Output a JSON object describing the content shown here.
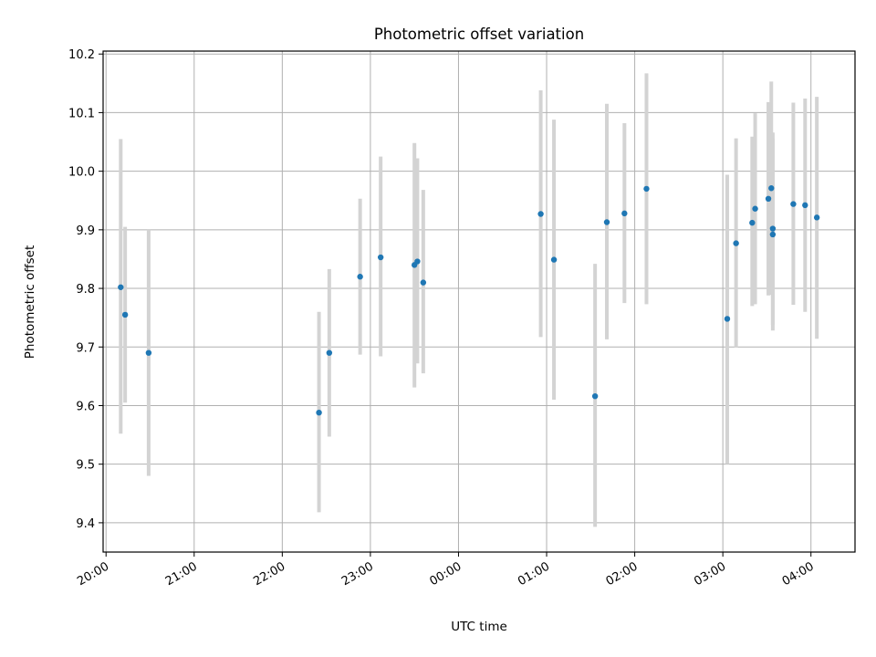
{
  "chart_data": {
    "type": "scatter",
    "title": "Photometric offset variation",
    "xlabel": "UTC time",
    "ylabel": "Photometric offset",
    "xlim": [
      "19:58",
      "04:30"
    ],
    "ylim": [
      9.35,
      10.205
    ],
    "grid": true,
    "x_ticks": [
      "20:00",
      "21:00",
      "22:00",
      "23:00",
      "00:00",
      "01:00",
      "02:00",
      "03:00",
      "04:00"
    ],
    "y_ticks": [
      "9.4",
      "9.5",
      "9.6",
      "9.7",
      "9.8",
      "9.9",
      "10.0",
      "10.1",
      "10.2"
    ],
    "colors": {
      "points": "#1f77b4",
      "errorbars": "#d3d3d3",
      "grid": "#b0b0b0"
    },
    "series": [
      {
        "points": [
          {
            "x": "20:10",
            "y": 9.802,
            "low": 9.552,
            "high": 10.055
          },
          {
            "x": "20:13",
            "y": 9.755,
            "low": 9.605,
            "high": 9.905
          },
          {
            "x": "20:29",
            "y": 9.69,
            "low": 9.48,
            "high": 9.9
          },
          {
            "x": "22:25",
            "y": 9.588,
            "low": 9.418,
            "high": 9.76
          },
          {
            "x": "22:32",
            "y": 9.69,
            "low": 9.547,
            "high": 9.833
          },
          {
            "x": "22:53",
            "y": 9.82,
            "low": 9.687,
            "high": 9.953
          },
          {
            "x": "23:07",
            "y": 9.853,
            "low": 9.684,
            "high": 10.025
          },
          {
            "x": "23:30",
            "y": 9.84,
            "low": 9.631,
            "high": 10.048
          },
          {
            "x": "23:32",
            "y": 9.846,
            "low": 9.672,
            "high": 10.022
          },
          {
            "x": "23:36",
            "y": 9.81,
            "low": 9.655,
            "high": 9.968
          },
          {
            "x": "00:56",
            "y": 9.927,
            "low": 9.717,
            "high": 10.138
          },
          {
            "x": "01:05",
            "y": 9.849,
            "low": 9.61,
            "high": 10.088
          },
          {
            "x": "01:33",
            "y": 9.616,
            "low": 9.393,
            "high": 9.842
          },
          {
            "x": "01:41",
            "y": 9.913,
            "low": 9.713,
            "high": 10.115
          },
          {
            "x": "01:53",
            "y": 9.928,
            "low": 9.775,
            "high": 10.082
          },
          {
            "x": "02:08",
            "y": 9.97,
            "low": 9.773,
            "high": 10.167
          },
          {
            "x": "03:03",
            "y": 9.748,
            "low": 9.5,
            "high": 9.994
          },
          {
            "x": "03:09",
            "y": 9.877,
            "low": 9.699,
            "high": 10.056
          },
          {
            "x": "03:20",
            "y": 9.912,
            "low": 9.77,
            "high": 10.059
          },
          {
            "x": "03:22",
            "y": 9.936,
            "low": 9.773,
            "high": 10.099
          },
          {
            "x": "03:31",
            "y": 9.953,
            "low": 9.788,
            "high": 10.118
          },
          {
            "x": "03:33",
            "y": 9.971,
            "low": 9.789,
            "high": 10.153
          },
          {
            "x": "03:34",
            "y": 9.902,
            "low": 9.738,
            "high": 10.066
          },
          {
            "x": "03:34",
            "y": 9.892,
            "low": 9.728,
            "high": 10.056
          },
          {
            "x": "03:48",
            "y": 9.944,
            "low": 9.772,
            "high": 10.117
          },
          {
            "x": "03:56",
            "y": 9.942,
            "low": 9.76,
            "high": 10.124
          },
          {
            "x": "04:04",
            "y": 9.921,
            "low": 9.714,
            "high": 10.127
          }
        ]
      }
    ]
  }
}
